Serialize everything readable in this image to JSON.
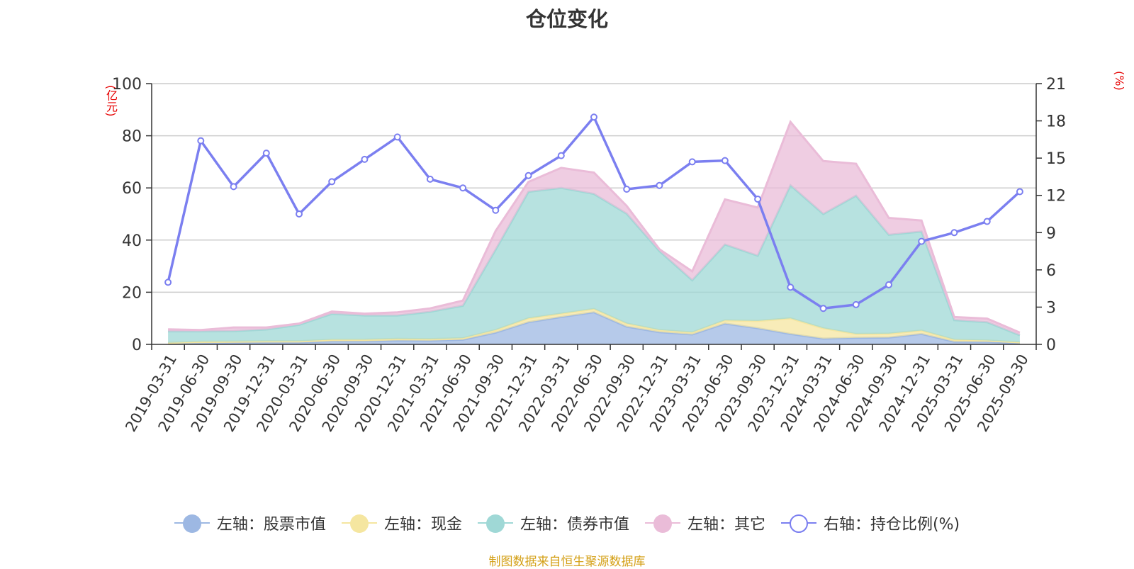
{
  "chart_data": {
    "type": "area",
    "title": "仓位变化",
    "left_unit": "(亿元)",
    "right_unit": "(%)",
    "source": "制图数据来自恒生聚源数据库",
    "categories": [
      "2019-03-31",
      "2019-06-30",
      "2019-09-30",
      "2019-12-31",
      "2020-03-31",
      "2020-06-30",
      "2020-09-30",
      "2020-12-31",
      "2021-03-31",
      "2021-06-30",
      "2021-09-30",
      "2021-12-31",
      "2022-03-31",
      "2022-06-30",
      "2022-09-30",
      "2022-12-31",
      "2023-03-31",
      "2023-06-30",
      "2023-09-30",
      "2023-12-31",
      "2024-03-31",
      "2024-06-30",
      "2024-09-30",
      "2024-12-31",
      "2025-03-31",
      "2025-06-30",
      "2025-09-30"
    ],
    "left_axis": {
      "min": 0,
      "max": 100,
      "ticks": [
        0,
        20,
        40,
        60,
        80,
        100
      ]
    },
    "right_axis": {
      "min": 0,
      "max": 21,
      "ticks": [
        0,
        3,
        6,
        9,
        12,
        15,
        18,
        21
      ]
    },
    "stacked_series": [
      {
        "name": "左轴：股票市值",
        "color": "#9db8e3",
        "values": [
          0.3,
          0.5,
          0.6,
          0.7,
          0.7,
          1.2,
          1.2,
          1.5,
          1.4,
          1.8,
          4.5,
          8.5,
          10.5,
          12.3,
          6.8,
          4.7,
          3.8,
          8.0,
          6.2,
          4.0,
          2.2,
          2.5,
          2.6,
          4.0,
          1.0,
          1.0,
          0.5
        ]
      },
      {
        "name": "左轴：现金",
        "color": "#f5e6a0",
        "values": [
          0.3,
          0.5,
          0.5,
          0.5,
          0.5,
          0.6,
          0.6,
          0.6,
          0.6,
          0.6,
          1.0,
          1.5,
          1.3,
          1.3,
          1.2,
          0.8,
          0.8,
          1.2,
          2.8,
          6.0,
          4.0,
          1.5,
          1.5,
          1.3,
          0.8,
          0.5,
          0.3
        ]
      },
      {
        "name": "左轴：债券市值",
        "color": "#9fd8d6",
        "values": [
          4.4,
          4.0,
          4.0,
          4.5,
          6.3,
          9.9,
          9.3,
          9.0,
          10.5,
          12.4,
          30.8,
          48.5,
          48.2,
          44.1,
          42.1,
          30.3,
          20.0,
          29.1,
          25.0,
          51.0,
          43.8,
          53.0,
          37.9,
          38.0,
          7.5,
          7.0,
          2.7
        ]
      },
      {
        "name": "左轴：其它",
        "color": "#eabcd8",
        "values": [
          0.8,
          0.5,
          1.4,
          0.8,
          0.5,
          0.9,
          0.7,
          1.2,
          1.3,
          2.0,
          7.2,
          3.8,
          7.7,
          8.2,
          3.0,
          0.7,
          3.4,
          17.3,
          18.5,
          24.3,
          20.3,
          12.3,
          6.5,
          4.2,
          1.2,
          1.4,
          1.0
        ]
      }
    ],
    "line_series": {
      "name": "右轴：持仓比例(%)",
      "color": "#7b7ff0",
      "values": [
        5.0,
        16.4,
        12.7,
        15.4,
        10.5,
        13.1,
        14.9,
        16.7,
        13.3,
        12.6,
        10.8,
        13.6,
        15.2,
        18.3,
        12.5,
        12.8,
        14.7,
        14.8,
        11.7,
        4.6,
        2.9,
        3.2,
        4.8,
        8.3,
        9.0,
        9.9,
        12.3
      ]
    }
  }
}
